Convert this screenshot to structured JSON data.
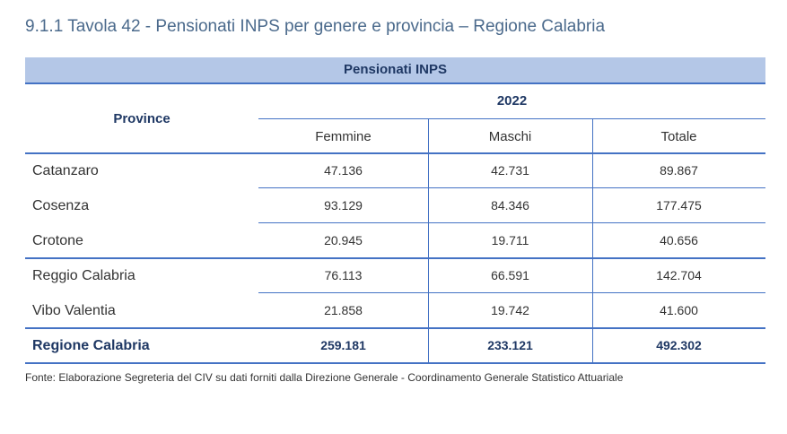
{
  "title": "9.1.1 Tavola 42 - Pensionati INPS per genere e provincia – Regione Calabria",
  "band": "Pensionati INPS",
  "header": {
    "row_label": "Province",
    "year": "2022",
    "columns": [
      "Femmine",
      "Maschi",
      "Totale"
    ]
  },
  "rows": [
    {
      "name": "Catanzaro",
      "values": [
        "47.136",
        "42.731",
        "89.867"
      ]
    },
    {
      "name": "Cosenza",
      "values": [
        "93.129",
        "84.346",
        "177.475"
      ]
    },
    {
      "name": "Crotone",
      "values": [
        "20.945",
        "19.711",
        "40.656"
      ]
    },
    {
      "name": "Reggio Calabria",
      "values": [
        "76.113",
        "66.591",
        "142.704"
      ]
    },
    {
      "name": "Vibo Valentia",
      "values": [
        "21.858",
        "19.742",
        "41.600"
      ]
    }
  ],
  "total": {
    "name": "Regione Calabria",
    "values": [
      "259.181",
      "233.121",
      "492.302"
    ]
  },
  "footnote": "Fonte: Elaborazione Segreteria del CIV su dati forniti dalla Direzione Generale - Coordinamento Generale Statistico Attuariale",
  "colors": {
    "title": "#4b6a8c",
    "band": "#b4c7e7",
    "line": "#4472c4"
  }
}
